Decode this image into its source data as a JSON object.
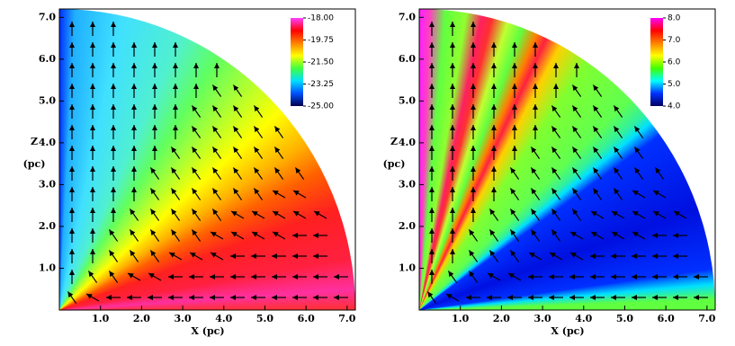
{
  "chart_data": [
    {
      "type": "heatmap",
      "xlabel": "X (pc)",
      "ylabel": "Z",
      "ylabel_unit": "(pc)",
      "xlim": [
        0,
        7.2
      ],
      "ylim": [
        0,
        7.2
      ],
      "xticks": [
        {
          "value": 1,
          "label": "1.0"
        },
        {
          "value": 2,
          "label": "2.0"
        },
        {
          "value": 3,
          "label": "3.0"
        },
        {
          "value": 4,
          "label": "4.0"
        },
        {
          "value": 5,
          "label": "5.0"
        },
        {
          "value": 6,
          "label": "6.0"
        },
        {
          "value": 7,
          "label": "7.0"
        }
      ],
      "yticks": [
        {
          "value": 1,
          "label": "1.0"
        },
        {
          "value": 2,
          "label": "2.0"
        },
        {
          "value": 3,
          "label": "3.0"
        },
        {
          "value": 4,
          "label": "4.0"
        },
        {
          "value": 5,
          "label": "5.0"
        },
        {
          "value": 6,
          "label": "6.0"
        },
        {
          "value": 7,
          "label": "7.0"
        }
      ],
      "colorbar": {
        "lim": [
          -25,
          -18
        ],
        "ticks": [
          {
            "value": -18,
            "label": "-18.00"
          },
          {
            "value": -19.75,
            "label": "-19.75"
          },
          {
            "value": -21.5,
            "label": "-21.50"
          },
          {
            "value": -23.25,
            "label": "-23.25"
          },
          {
            "value": -25,
            "label": "-25.00"
          }
        ],
        "colors": [
          "#00004a",
          "#0050ff",
          "#00e0ff",
          "#40ff40",
          "#ffff00",
          "#ff8000",
          "#ff0000",
          "#ff40ff"
        ]
      },
      "field_colors": [
        "#0030ff 0deg",
        "#20b0ff 3deg",
        "#40e0ff 12deg",
        "#50f0d0 24deg",
        "#60ff60 32deg",
        "#b0ff30 40deg",
        "#ffff00 48deg",
        "#ffb000 56deg",
        "#ff6000 62deg",
        "#ff2020 70deg",
        "#ff2040 80deg",
        "#ff30a0 86deg",
        "#ff3030 90deg"
      ]
    },
    {
      "type": "heatmap",
      "xlabel": "X (pc)",
      "ylabel": "Z",
      "ylabel_unit": "(pc)",
      "xlim": [
        0,
        7.2
      ],
      "ylim": [
        0,
        7.2
      ],
      "xticks": [
        {
          "value": 1,
          "label": "1.0"
        },
        {
          "value": 2,
          "label": "2.0"
        },
        {
          "value": 3,
          "label": "3.0"
        },
        {
          "value": 4,
          "label": "4.0"
        },
        {
          "value": 5,
          "label": "5.0"
        },
        {
          "value": 6,
          "label": "6.0"
        },
        {
          "value": 7,
          "label": "7.0"
        }
      ],
      "yticks": [
        {
          "value": 1,
          "label": "1.0"
        },
        {
          "value": 2,
          "label": "2.0"
        },
        {
          "value": 3,
          "label": "3.0"
        },
        {
          "value": 4,
          "label": "4.0"
        },
        {
          "value": 5,
          "label": "5.0"
        },
        {
          "value": 6,
          "label": "6.0"
        },
        {
          "value": 7,
          "label": "7.0"
        }
      ],
      "colorbar": {
        "lim": [
          4,
          8
        ],
        "ticks": [
          {
            "value": 8,
            "label": "8.0"
          },
          {
            "value": 7,
            "label": "7.0"
          },
          {
            "value": 6,
            "label": "6.0"
          },
          {
            "value": 5,
            "label": "5.0"
          },
          {
            "value": 4,
            "label": "4.0"
          }
        ],
        "colors": [
          "#000060",
          "#0030ff",
          "#00ffff",
          "#40ff00",
          "#ffff00",
          "#ff8000",
          "#ff0000",
          "#ff00ff"
        ]
      },
      "field_colors": [
        "#ff20ff 0deg",
        "#ff40c0 2deg",
        "#60ff40 5deg",
        "#90ff30 9deg",
        "#ff2060 12deg",
        "#ff3030 14deg",
        "#c0ff30 17deg",
        "#60ff40 20deg",
        "#ff8000 23deg",
        "#ff2040 25deg",
        "#ffd000 28deg",
        "#80ff30 34deg",
        "#60ff50 45deg",
        "#30f0a0 49deg",
        "#00e0ff 51deg",
        "#0030ff 54deg",
        "#0010e0 70deg",
        "#0030ff 82deg",
        "#00e0ff 85deg",
        "#60ff40 88deg",
        "#60ff40 90deg"
      ]
    }
  ]
}
